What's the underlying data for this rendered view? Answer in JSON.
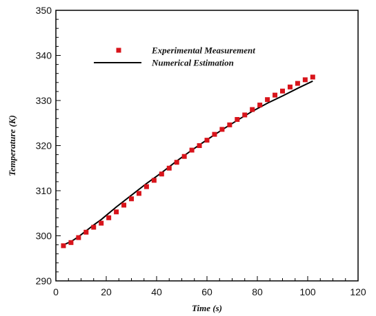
{
  "chart_data": {
    "type": "line",
    "xlabel": "Time (s)",
    "ylabel": "Temperature (K)",
    "xlim": [
      0,
      120
    ],
    "ylim": [
      290,
      350
    ],
    "x_ticks": [
      0,
      20,
      40,
      60,
      80,
      100,
      120
    ],
    "y_ticks": [
      290,
      300,
      310,
      320,
      330,
      340,
      350
    ],
    "grid": false,
    "legend_position": "top-left",
    "series": [
      {
        "name": "Experimental Measurement",
        "mark": "square",
        "color": "#d8141b",
        "x": [
          3,
          6,
          9,
          12,
          15,
          18,
          21,
          24,
          27,
          30,
          33,
          36,
          39,
          42,
          45,
          48,
          51,
          54,
          57,
          60,
          63,
          66,
          69,
          72,
          75,
          78,
          81,
          84,
          87,
          90,
          93,
          96,
          99,
          102
        ],
        "y": [
          297.8,
          298.5,
          299.6,
          300.8,
          301.9,
          302.8,
          304.0,
          305.3,
          306.8,
          308.2,
          309.4,
          310.9,
          312.3,
          313.7,
          315.0,
          316.3,
          317.6,
          319.0,
          320.0,
          321.2,
          322.5,
          323.6,
          324.6,
          325.8,
          326.8,
          328.0,
          329.0,
          330.2,
          331.2,
          332.1,
          333.0,
          333.8,
          334.6,
          335.2
        ]
      },
      {
        "name": "Numerical Estimation",
        "mark": "line",
        "color": "#000000",
        "x": [
          3,
          6,
          9,
          12,
          15,
          18,
          21,
          24,
          30,
          36,
          42,
          48,
          54,
          60,
          66,
          72,
          78,
          84,
          90,
          96,
          102
        ],
        "y": [
          298.0,
          298.7,
          299.8,
          301.1,
          302.4,
          303.6,
          305.0,
          306.4,
          309.0,
          311.6,
          314.0,
          316.6,
          319.0,
          321.3,
          323.5,
          325.6,
          327.6,
          329.4,
          331.0,
          332.7,
          334.3
        ]
      }
    ]
  }
}
